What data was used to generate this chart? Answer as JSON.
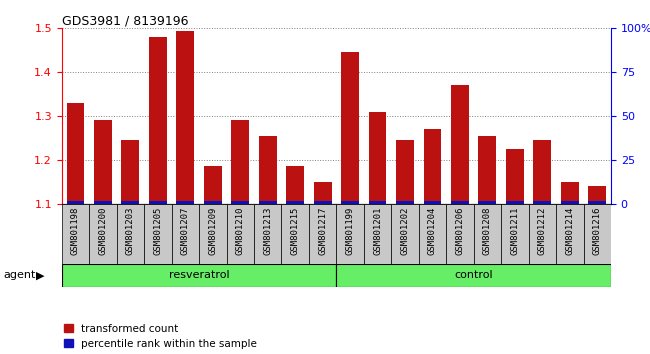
{
  "title": "GDS3981 / 8139196",
  "samples": [
    "GSM801198",
    "GSM801200",
    "GSM801203",
    "GSM801205",
    "GSM801207",
    "GSM801209",
    "GSM801210",
    "GSM801213",
    "GSM801215",
    "GSM801217",
    "GSM801199",
    "GSM801201",
    "GSM801202",
    "GSM801204",
    "GSM801206",
    "GSM801208",
    "GSM801211",
    "GSM801212",
    "GSM801214",
    "GSM801216"
  ],
  "red_values": [
    1.33,
    1.29,
    1.245,
    1.48,
    1.495,
    1.185,
    1.29,
    1.255,
    1.185,
    1.15,
    1.445,
    1.31,
    1.245,
    1.27,
    1.37,
    1.255,
    1.225,
    1.245,
    1.15,
    1.14
  ],
  "blue_values": [
    0.005,
    0.005,
    0.005,
    0.005,
    0.005,
    0.005,
    0.005,
    0.005,
    0.005,
    0.005,
    0.005,
    0.005,
    0.005,
    0.005,
    0.005,
    0.005,
    0.005,
    0.005,
    0.005,
    0.005
  ],
  "groups": [
    "resveratrol",
    "resveratrol",
    "resveratrol",
    "resveratrol",
    "resveratrol",
    "resveratrol",
    "resveratrol",
    "resveratrol",
    "resveratrol",
    "resveratrol",
    "control",
    "control",
    "control",
    "control",
    "control",
    "control",
    "control",
    "control",
    "control",
    "control"
  ],
  "ylim_left": [
    1.1,
    1.5
  ],
  "ylim_right": [
    0,
    100
  ],
  "right_ticks": [
    0,
    25,
    50,
    75,
    100
  ],
  "right_tick_labels": [
    "0",
    "25",
    "50",
    "75",
    "100%"
  ],
  "bar_width": 0.65,
  "red_color": "#BB1111",
  "blue_color": "#1111BB",
  "cell_bg_color": "#C8C8C8",
  "plot_bg": "#FFFFFF",
  "legend_red": "transformed count",
  "legend_blue": "percentile rank within the sample",
  "agent_label": "agent",
  "group_label_resveratrol": "resveratrol",
  "group_label_control": "control",
  "green_color": "#66EE66"
}
